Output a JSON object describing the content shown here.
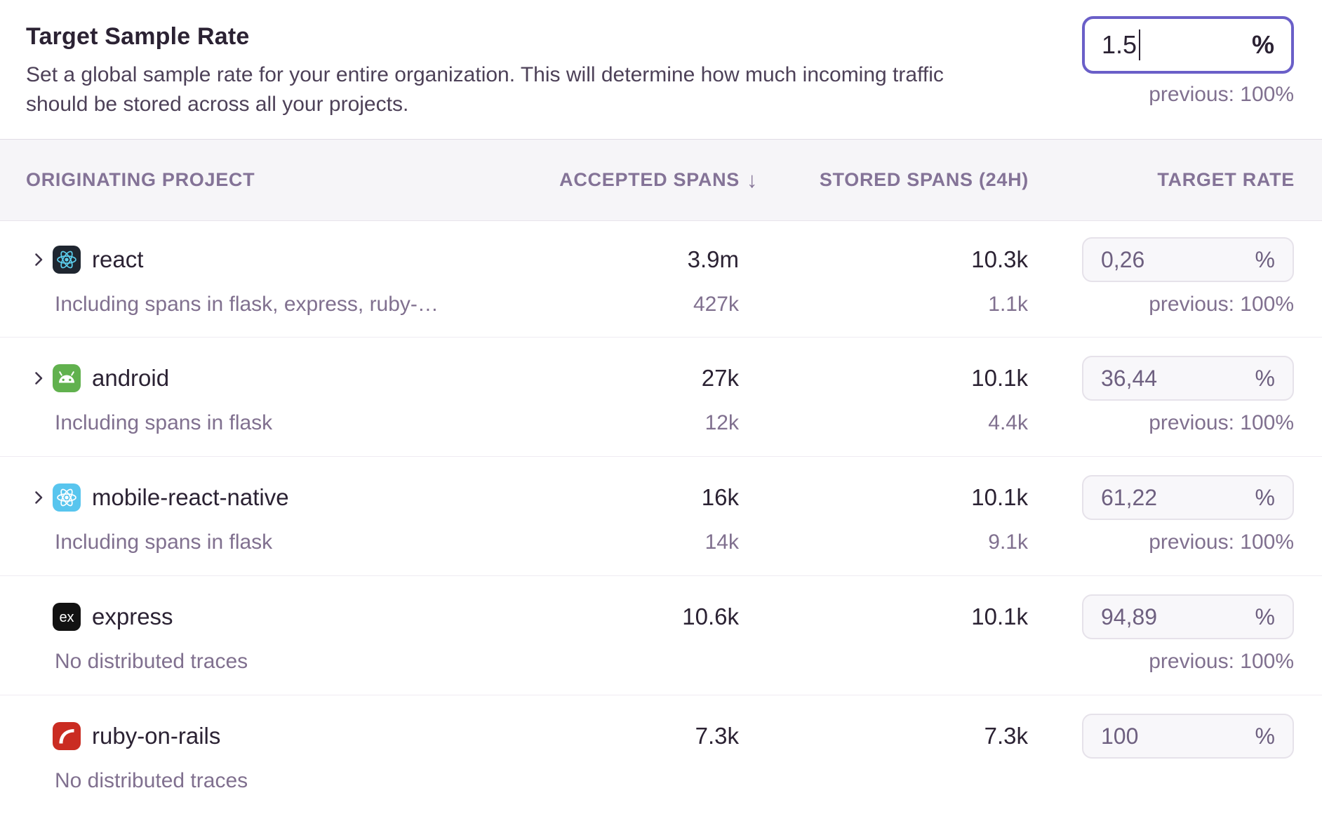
{
  "colors": {
    "accent_purple": "#6A5FC8",
    "header_bg": "#F6F5F8",
    "text_dark": "#2B2233",
    "text_muted": "#80708F",
    "react_bg": "#1F2630",
    "react_logo": "#5CCFEE",
    "react_native_bg": "#58C5EE",
    "android_bg": "#61B14E",
    "express_bg": "#121212",
    "rails_bg": "#CA2C22"
  },
  "icons": {
    "express_label": "ex"
  },
  "section": {
    "title": "Target Sample Rate",
    "description": "Set a global sample rate for your entire organization. This will determine how much incoming traffic should be stored across all your projects.",
    "rate_input": {
      "value": "1.5",
      "suffix": "%",
      "previous": "previous: 100%"
    }
  },
  "table": {
    "columns": [
      {
        "label": "ORIGINATING PROJECT"
      },
      {
        "label": "ACCEPTED SPANS",
        "sort_icon": "↓"
      },
      {
        "label": "STORED SPANS (24H)"
      },
      {
        "label": "TARGET RATE"
      }
    ],
    "rows": [
      {
        "icon": "react-icon",
        "name": "react",
        "expandable": true,
        "note": "Including spans in flask, express, ruby-…",
        "accepted": "3.9m",
        "accepted_sub": "427k",
        "stored": "10.3k",
        "stored_sub": "1.1k",
        "rate": "0,26",
        "rate_suffix": "%",
        "previous": "previous: 100%"
      },
      {
        "icon": "android-icon",
        "name": "android",
        "expandable": true,
        "note": "Including spans in flask",
        "accepted": "27k",
        "accepted_sub": "12k",
        "stored": "10.1k",
        "stored_sub": "4.4k",
        "rate": "36,44",
        "rate_suffix": "%",
        "previous": "previous: 100%"
      },
      {
        "icon": "react-native-icon",
        "name": "mobile-react-native",
        "expandable": true,
        "note": "Including spans in flask",
        "accepted": "16k",
        "accepted_sub": "14k",
        "stored": "10.1k",
        "stored_sub": "9.1k",
        "rate": "61,22",
        "rate_suffix": "%",
        "previous": "previous: 100%"
      },
      {
        "icon": "express-icon",
        "name": "express",
        "expandable": false,
        "note": "No distributed traces",
        "accepted": "10.6k",
        "stored": "10.1k",
        "rate": "94,89",
        "rate_suffix": "%",
        "previous": "previous: 100%"
      },
      {
        "icon": "rails-icon",
        "name": "ruby-on-rails",
        "expandable": false,
        "note": "No distributed traces",
        "accepted": "7.3k",
        "stored": "7.3k",
        "rate": "100",
        "rate_suffix": "%"
      }
    ]
  }
}
